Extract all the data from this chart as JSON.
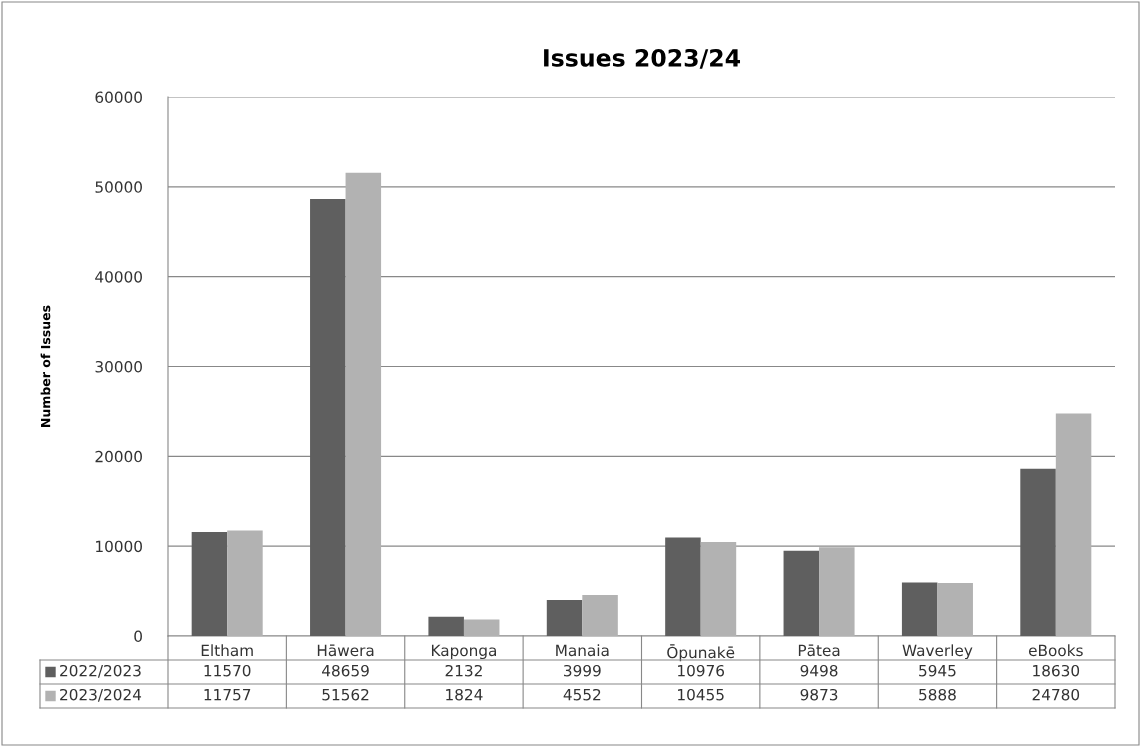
{
  "chart_data": {
    "type": "bar",
    "title": "Issues 2023/24",
    "ylabel": "Number of Issues",
    "categories": [
      "Eltham",
      "Hāwera",
      "Kaponga",
      "Manaia",
      "Ōpunakē",
      "Pātea",
      "Waverley",
      "eBooks"
    ],
    "series": [
      {
        "name": "2022/2023",
        "color": "#5f5f5f",
        "values": [
          11570,
          48659,
          2132,
          3999,
          10976,
          9498,
          5945,
          18630
        ]
      },
      {
        "name": "2023/2024",
        "color": "#b2b2b2",
        "values": [
          11757,
          51562,
          1824,
          4552,
          10455,
          9873,
          5888,
          24780
        ]
      }
    ],
    "ylim": [
      0,
      60000
    ],
    "yticks": [
      0,
      10000,
      20000,
      30000,
      40000,
      50000,
      60000
    ],
    "grid": "y",
    "legend": "bottom",
    "data_labels": true
  }
}
